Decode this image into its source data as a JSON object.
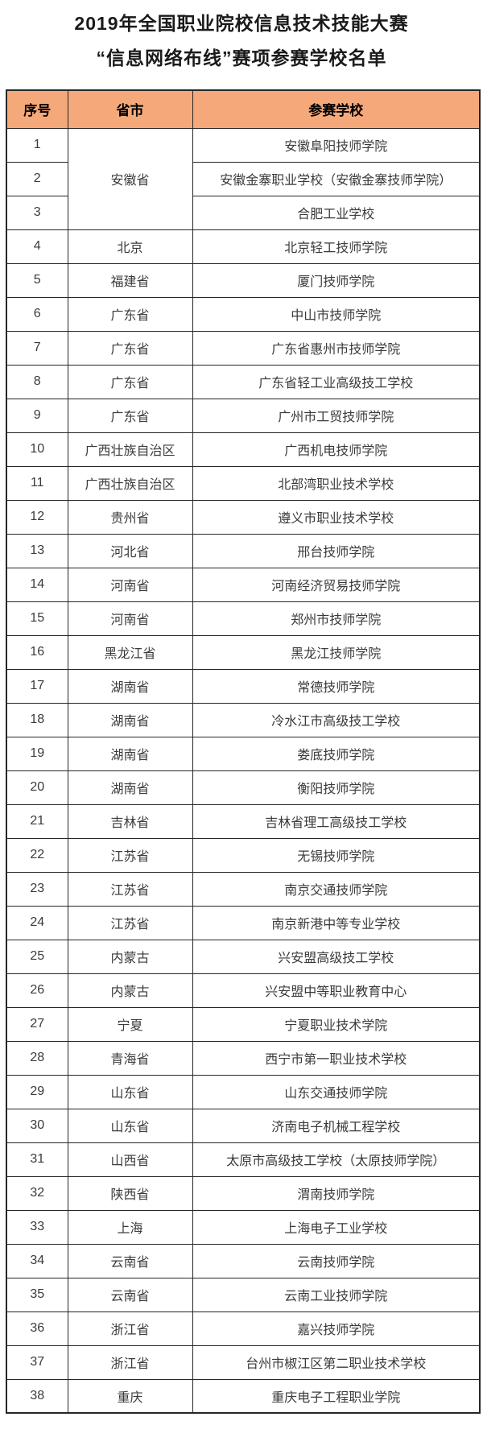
{
  "page": {
    "title_line1": "2019年全国职业院校信息技术技能大赛",
    "title_line2": "“信息网络布线”赛项参赛学校名单"
  },
  "colors": {
    "header_bg": "#F5A97B",
    "border": "#262626",
    "cell_text": "#3A3A3A"
  },
  "table": {
    "headers": [
      "序号",
      "省市",
      "参赛学校"
    ],
    "rows": [
      {
        "no": "1",
        "province": "安徽省",
        "province_rowspan": 3,
        "school": "安徽阜阳技师学院"
      },
      {
        "no": "2",
        "school": "安徽金寨职业学校（安徽金寨技师学院）"
      },
      {
        "no": "3",
        "school": "合肥工业学校"
      },
      {
        "no": "4",
        "province": "北京",
        "school": "北京轻工技师学院"
      },
      {
        "no": "5",
        "province": "福建省",
        "school": "厦门技师学院"
      },
      {
        "no": "6",
        "province": "广东省",
        "school": "中山市技师学院"
      },
      {
        "no": "7",
        "province": "广东省",
        "school": "广东省惠州市技师学院"
      },
      {
        "no": "8",
        "province": "广东省",
        "school": "广东省轻工业高级技工学校"
      },
      {
        "no": "9",
        "province": "广东省",
        "school": "广州市工贸技师学院"
      },
      {
        "no": "10",
        "province": "广西壮族自治区",
        "school": "广西机电技师学院"
      },
      {
        "no": "11",
        "province": "广西壮族自治区",
        "school": "北部湾职业技术学校"
      },
      {
        "no": "12",
        "province": "贵州省",
        "school": "遵义市职业技术学校"
      },
      {
        "no": "13",
        "province": "河北省",
        "school": "邢台技师学院"
      },
      {
        "no": "14",
        "province": "河南省",
        "school": "河南经济贸易技师学院"
      },
      {
        "no": "15",
        "province": "河南省",
        "school": "郑州市技师学院"
      },
      {
        "no": "16",
        "province": "黑龙江省",
        "school": "黑龙江技师学院"
      },
      {
        "no": "17",
        "province": "湖南省",
        "school": "常德技师学院"
      },
      {
        "no": "18",
        "province": "湖南省",
        "school": "冷水江市高级技工学校"
      },
      {
        "no": "19",
        "province": "湖南省",
        "school": "娄底技师学院"
      },
      {
        "no": "20",
        "province": "湖南省",
        "school": "衡阳技师学院"
      },
      {
        "no": "21",
        "province": "吉林省",
        "school": "吉林省理工高级技工学校"
      },
      {
        "no": "22",
        "province": "江苏省",
        "school": "无锡技师学院"
      },
      {
        "no": "23",
        "province": "江苏省",
        "school": "南京交通技师学院"
      },
      {
        "no": "24",
        "province": "江苏省",
        "school": "南京新港中等专业学校"
      },
      {
        "no": "25",
        "province": "内蒙古",
        "school": "兴安盟高级技工学校"
      },
      {
        "no": "26",
        "province": "内蒙古",
        "school": "兴安盟中等职业教育中心"
      },
      {
        "no": "27",
        "province": "宁夏",
        "school": "宁夏职业技术学院"
      },
      {
        "no": "28",
        "province": "青海省",
        "school": "西宁市第一职业技术学校"
      },
      {
        "no": "29",
        "province": "山东省",
        "school": "山东交通技师学院"
      },
      {
        "no": "30",
        "province": "山东省",
        "school": "济南电子机械工程学校"
      },
      {
        "no": "31",
        "province": "山西省",
        "school": "太原市高级技工学校（太原技师学院）"
      },
      {
        "no": "32",
        "province": "陕西省",
        "school": "渭南技师学院"
      },
      {
        "no": "33",
        "province": "上海",
        "school": "上海电子工业学校"
      },
      {
        "no": "34",
        "province": "云南省",
        "school": "云南技师学院"
      },
      {
        "no": "35",
        "province": "云南省",
        "school": "云南工业技师学院"
      },
      {
        "no": "36",
        "province": "浙江省",
        "school": "嘉兴技师学院"
      },
      {
        "no": "37",
        "province": "浙江省",
        "school": "台州市椒江区第二职业技术学校"
      },
      {
        "no": "38",
        "province": "重庆",
        "school": "重庆电子工程职业学院"
      }
    ]
  }
}
